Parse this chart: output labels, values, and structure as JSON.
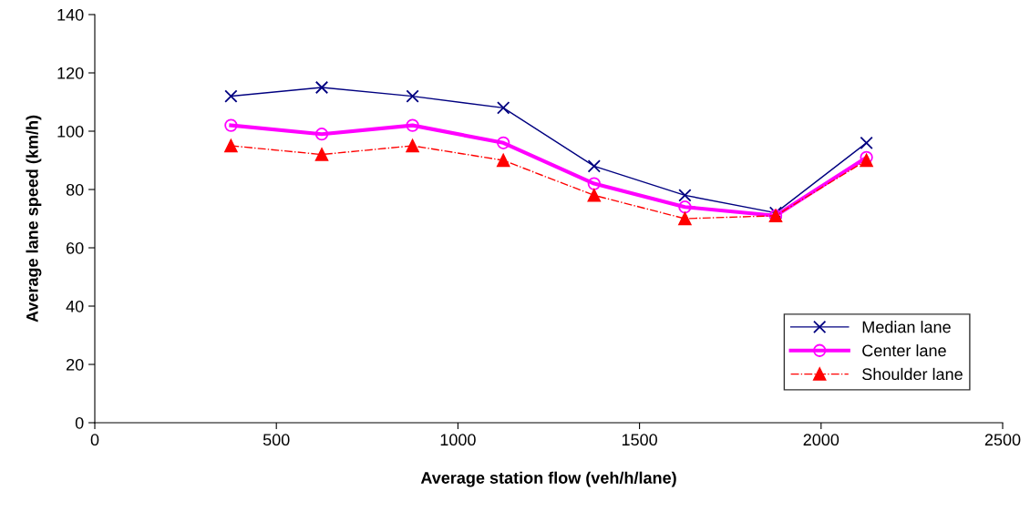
{
  "chart_data": {
    "type": "line",
    "xlabel": "Average station flow (veh/h/lane)",
    "ylabel": "Average lane speed (km/h)",
    "x": [
      375,
      625,
      875,
      1125,
      1375,
      1625,
      1875,
      2125
    ],
    "series": [
      {
        "name": "Median lane",
        "color": "#000080",
        "values": [
          112,
          115,
          112,
          108,
          88,
          78,
          72,
          96
        ],
        "marker": "cross",
        "line_style": "solid"
      },
      {
        "name": "Center lane",
        "color": "#ff00ff",
        "values": [
          102,
          99,
          102,
          96,
          82,
          74,
          71,
          91
        ],
        "marker": "circle",
        "line_style": "solid"
      },
      {
        "name": "Shoulder lane",
        "color": "#ff0000",
        "values": [
          95,
          92,
          95,
          90,
          78,
          70,
          71,
          90
        ],
        "marker": "triangle",
        "line_style": "dashdot"
      }
    ],
    "xlim": [
      0,
      2500
    ],
    "xticks": [
      0,
      500,
      1000,
      1500,
      2000,
      2500
    ],
    "ylim": [
      0,
      140
    ],
    "yticks": [
      0,
      20,
      40,
      60,
      80,
      100,
      120,
      140
    ],
    "grid": false,
    "legend": "bottom right"
  }
}
